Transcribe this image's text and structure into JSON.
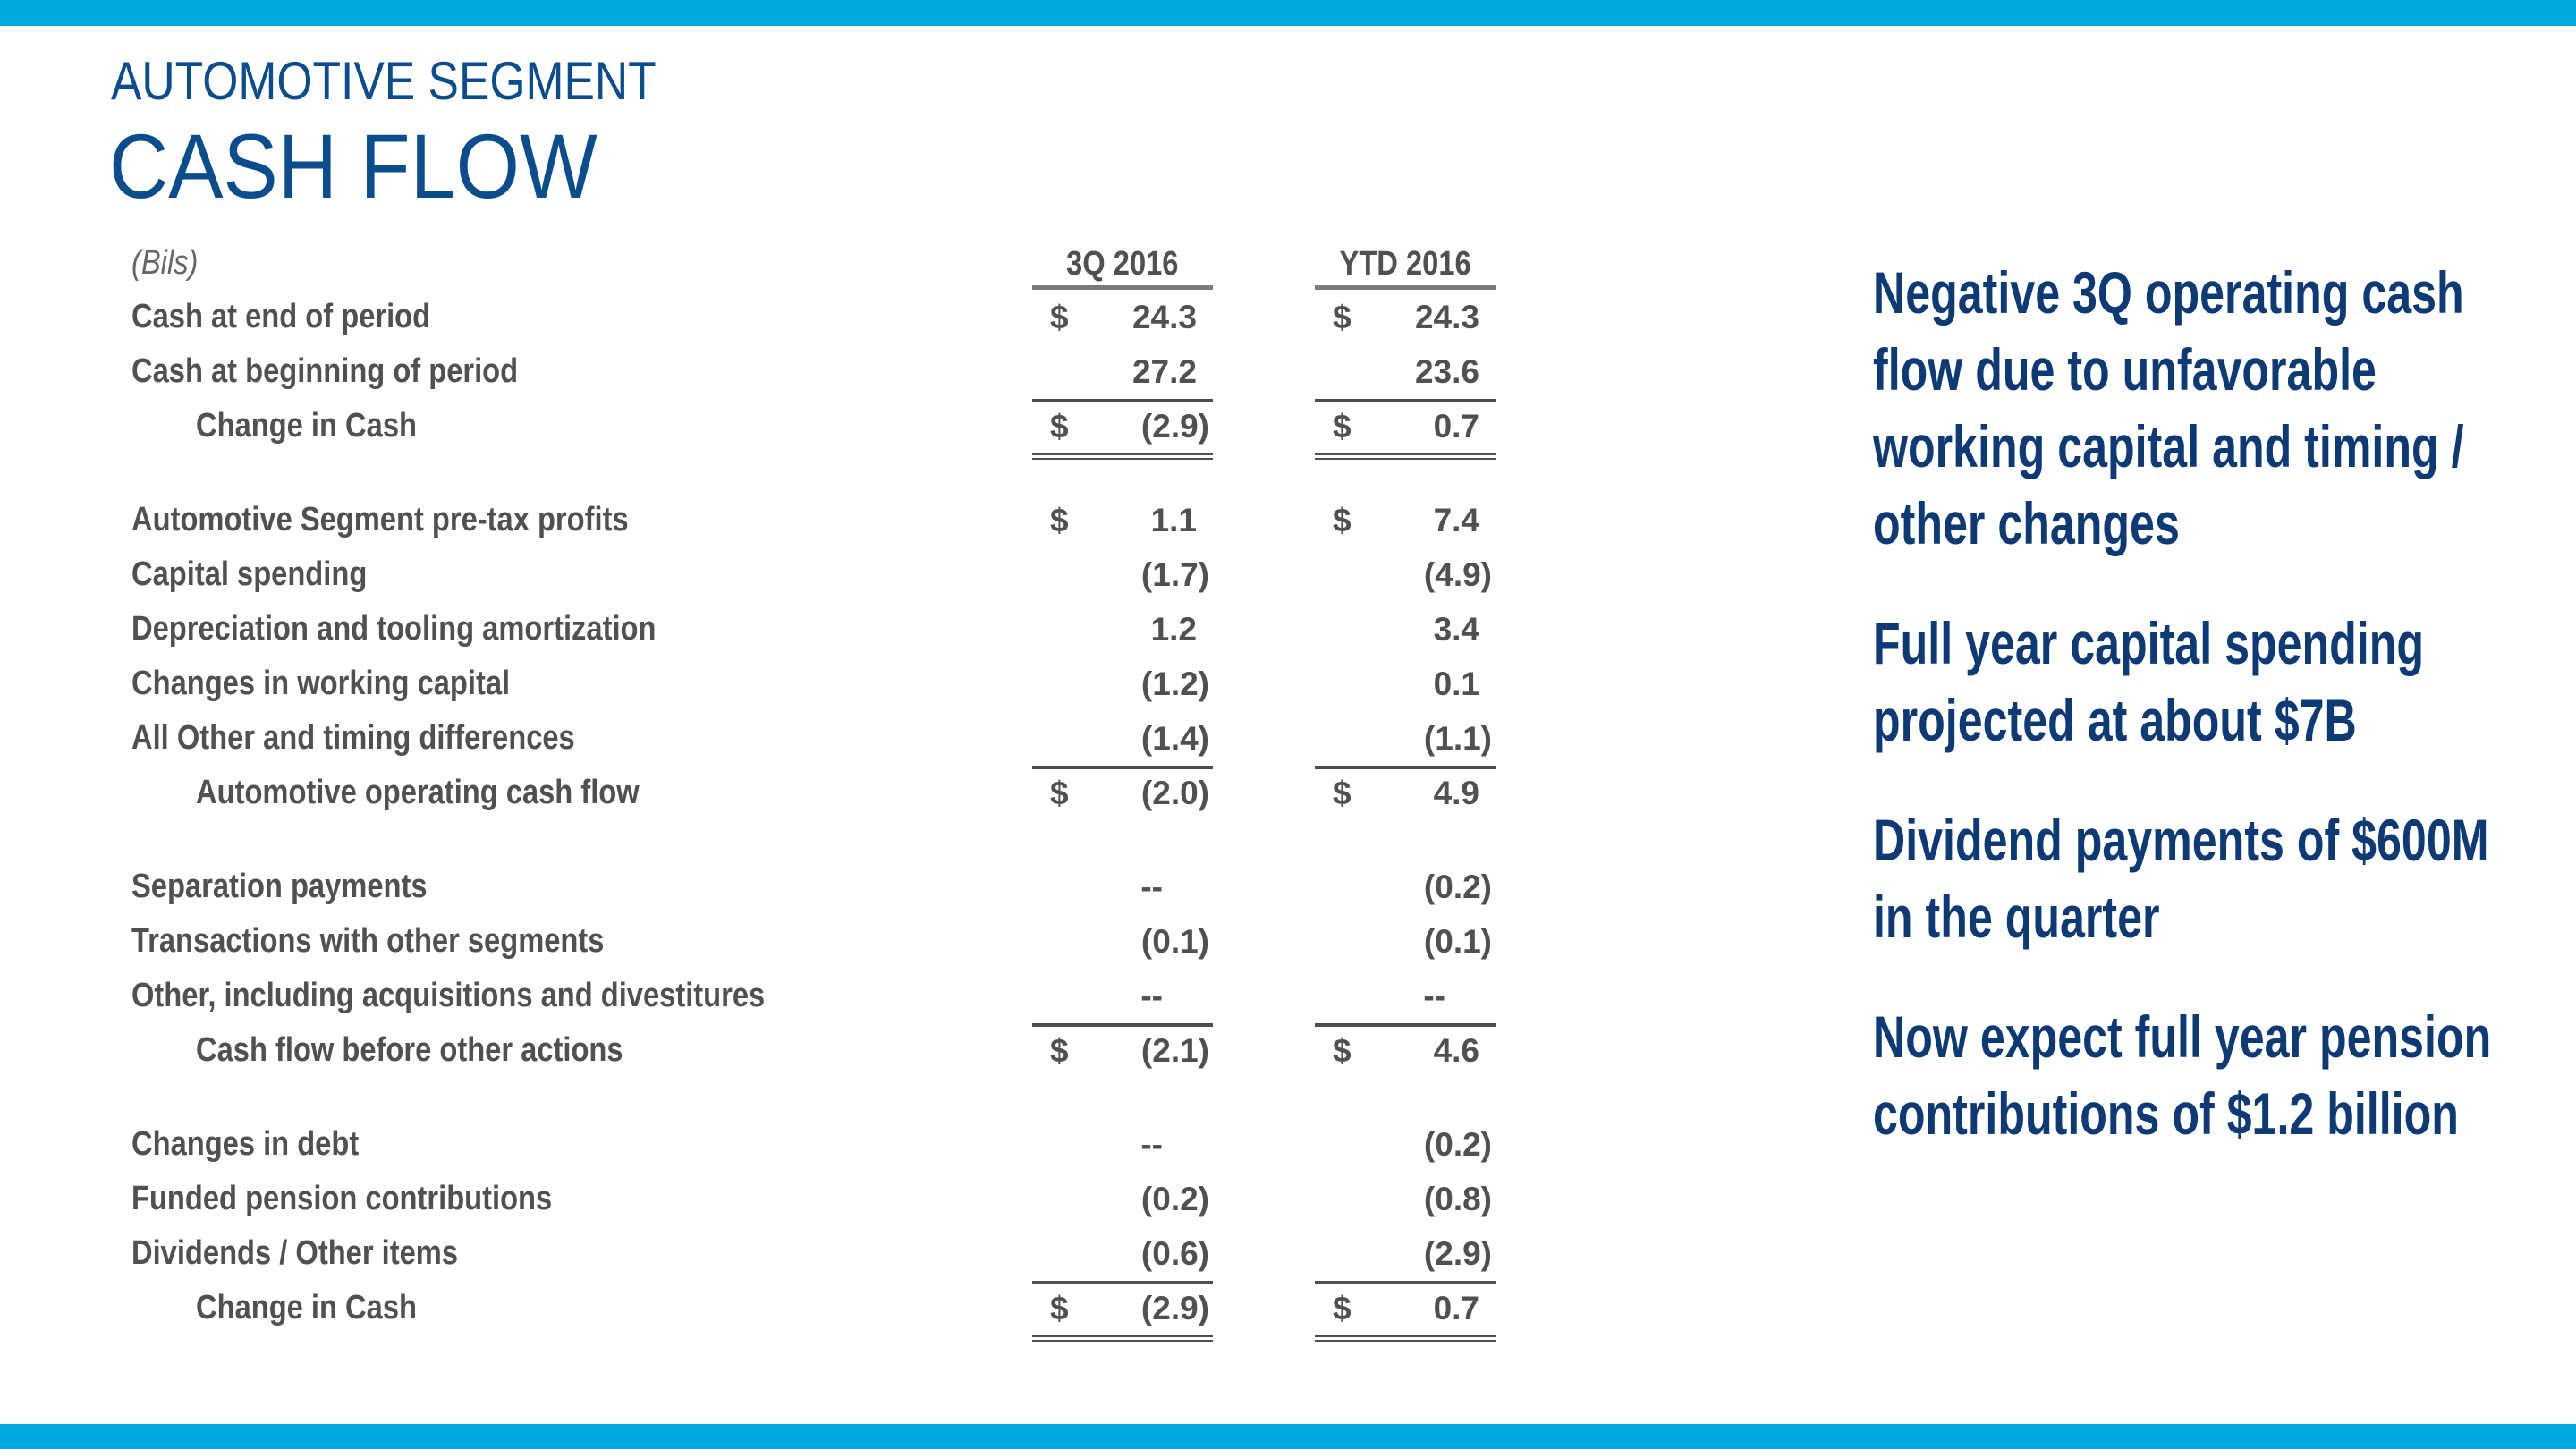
{
  "header": {
    "kicker": "AUTOMOTIVE SEGMENT",
    "title": "CASH FLOW"
  },
  "colors": {
    "accent_bar": "#00a8e0",
    "title": "#0b4c8c",
    "notes": "#0d3a75",
    "table_text": "#505050"
  },
  "table": {
    "unit_label": "(Bils)",
    "columns": [
      "3Q 2016",
      "YTD 2016"
    ],
    "sections": [
      [
        {
          "label": "Cash at end of period",
          "values": [
            {
              "cur": "$",
              "v": "24.3"
            },
            {
              "cur": "$",
              "v": "24.3"
            }
          ]
        },
        {
          "label": "Cash at beginning of period",
          "values": [
            {
              "cur": "",
              "v": "27.2"
            },
            {
              "cur": "",
              "v": "23.6"
            }
          ]
        },
        {
          "label": "Change in Cash",
          "kind": "total",
          "indent": true,
          "values": [
            {
              "cur": "$",
              "v": "(2.9)"
            },
            {
              "cur": "$",
              "v": "0.7"
            }
          ]
        }
      ],
      [
        {
          "label": "Automotive Segment pre-tax profits",
          "values": [
            {
              "cur": "$",
              "v": "1.1"
            },
            {
              "cur": "$",
              "v": "7.4"
            }
          ]
        },
        {
          "label": "Capital spending",
          "values": [
            {
              "cur": "",
              "v": "(1.7)"
            },
            {
              "cur": "",
              "v": "(4.9)"
            }
          ]
        },
        {
          "label": "Depreciation and tooling amortization",
          "values": [
            {
              "cur": "",
              "v": "1.2"
            },
            {
              "cur": "",
              "v": "3.4"
            }
          ]
        },
        {
          "label": "Changes in working capital",
          "values": [
            {
              "cur": "",
              "v": "(1.2)"
            },
            {
              "cur": "",
              "v": "0.1"
            }
          ]
        },
        {
          "label": "All Other and timing differences",
          "values": [
            {
              "cur": "",
              "v": "(1.4)"
            },
            {
              "cur": "",
              "v": "(1.1)"
            }
          ]
        },
        {
          "label": "Automotive operating cash flow",
          "kind": "subtotal",
          "indent": true,
          "values": [
            {
              "cur": "$",
              "v": "(2.0)"
            },
            {
              "cur": "$",
              "v": "4.9"
            }
          ]
        }
      ],
      [
        {
          "label": "Separation payments",
          "values": [
            {
              "cur": "",
              "v": "--"
            },
            {
              "cur": "",
              "v": "(0.2)"
            }
          ]
        },
        {
          "label": "Transactions with other segments",
          "values": [
            {
              "cur": "",
              "v": "(0.1)"
            },
            {
              "cur": "",
              "v": "(0.1)"
            }
          ]
        },
        {
          "label": "Other, including acquisitions and divestitures",
          "values": [
            {
              "cur": "",
              "v": "--"
            },
            {
              "cur": "",
              "v": "--"
            }
          ]
        },
        {
          "label": "Cash flow before other actions",
          "kind": "subtotal",
          "indent": true,
          "values": [
            {
              "cur": "$",
              "v": "(2.1)"
            },
            {
              "cur": "$",
              "v": "4.6"
            }
          ]
        }
      ],
      [
        {
          "label": "Changes in debt",
          "values": [
            {
              "cur": "",
              "v": "--"
            },
            {
              "cur": "",
              "v": "(0.2)"
            }
          ]
        },
        {
          "label": "Funded pension contributions",
          "values": [
            {
              "cur": "",
              "v": "(0.2)"
            },
            {
              "cur": "",
              "v": "(0.8)"
            }
          ]
        },
        {
          "label": "Dividends / Other items",
          "values": [
            {
              "cur": "",
              "v": "(0.6)"
            },
            {
              "cur": "",
              "v": "(2.9)"
            }
          ]
        },
        {
          "label": "Change in Cash",
          "kind": "total",
          "indent": true,
          "values": [
            {
              "cur": "$",
              "v": "(2.9)"
            },
            {
              "cur": "$",
              "v": "0.7"
            }
          ]
        }
      ]
    ]
  },
  "notes": [
    "Negative 3Q operating cash flow due to unfavorable working capital and timing / other changes",
    "Full year capital spending projected at about $7B",
    "Dividend payments of $600M in the quarter",
    "Now expect full year pension contributions of $1.2 billion"
  ]
}
